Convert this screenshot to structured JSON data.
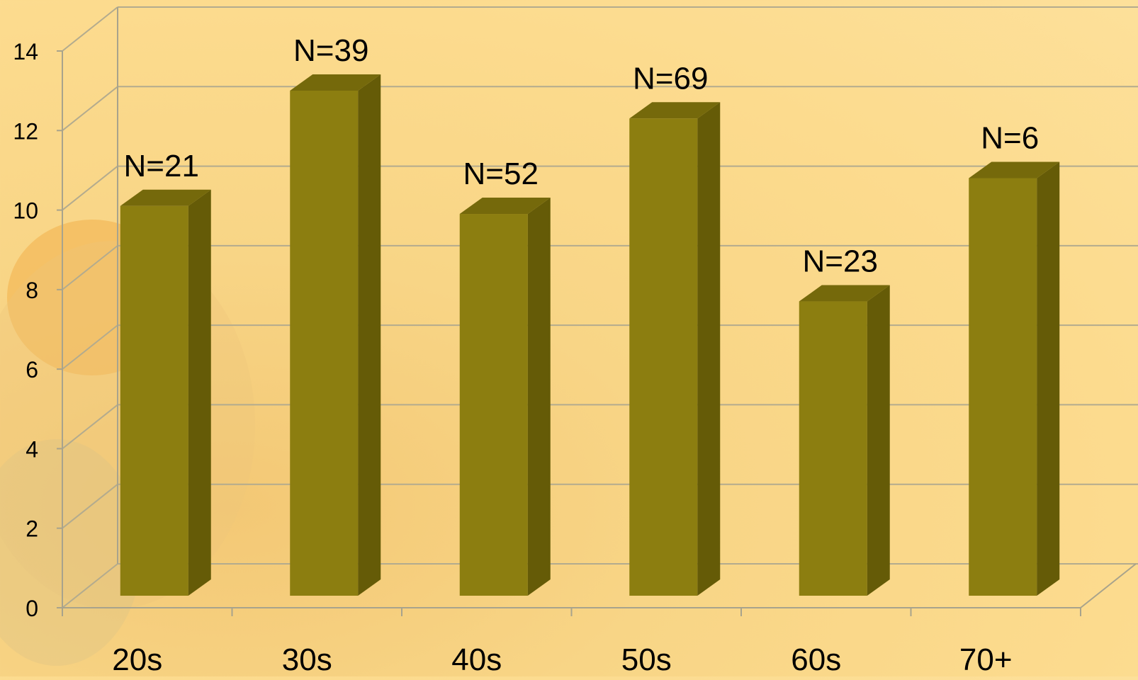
{
  "chart_data": {
    "type": "bar",
    "style": "3d-column",
    "categories": [
      "20s",
      "30s",
      "40s",
      "50s",
      "60s",
      "70+"
    ],
    "values": [
      9.8,
      12.7,
      9.6,
      12.0,
      7.4,
      10.5
    ],
    "data_labels": [
      "N=21",
      "N=39",
      "N=52",
      "N=69",
      "N=23",
      "N=6"
    ],
    "ylim": [
      0,
      14
    ],
    "yticks": [
      "0",
      "2",
      "4",
      "6",
      "8",
      "10",
      "12",
      "14"
    ],
    "ytick_values": [
      0,
      2,
      4,
      6,
      8,
      10,
      12,
      14
    ],
    "grid": true,
    "legend": "none",
    "colors": {
      "bar_front": "#8c7e10",
      "bar_side": "#655b07",
      "bar_top": "#75690b",
      "grid": "#b3ab8e",
      "axis": "#a8a38c"
    }
  }
}
